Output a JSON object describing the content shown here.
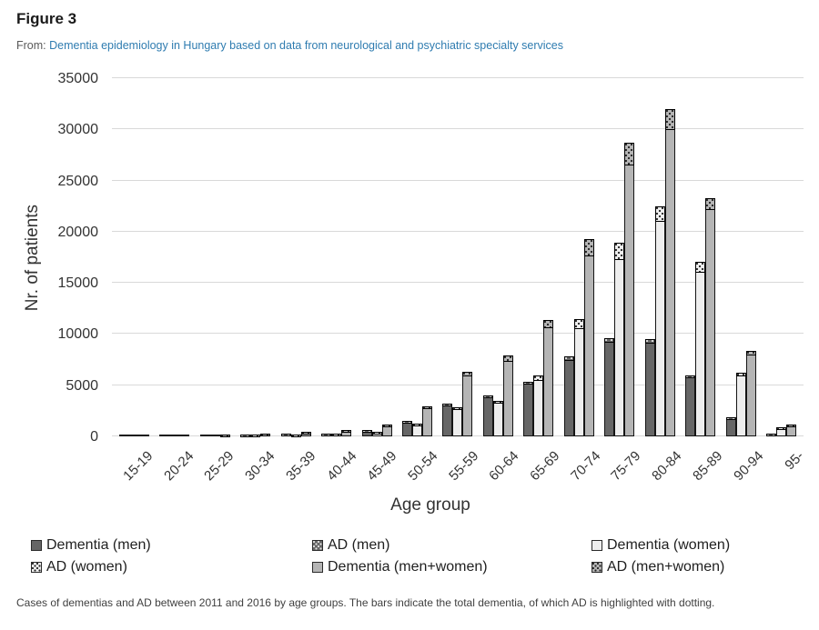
{
  "figure": {
    "title": "Figure 3",
    "from_label": "From:",
    "source_link": "Dementia epidemiology in Hungary based on data from neurological and psychiatric specialty services"
  },
  "caption": "Cases of dementias and AD between 2011 and 2016 by age groups. The bars indicate the total dementia, of which AD is highlighted with dotting.",
  "colors": {
    "link": "#2f7cb0",
    "men_fill": "#666666",
    "women_fill": "#eeeeee",
    "total_fill": "#b5b5b5",
    "bar_border": "#141414",
    "gridline": "#d9d9d9"
  },
  "legend": {
    "items": [
      {
        "label": "Dementia (men)",
        "series": "men",
        "dotted": false
      },
      {
        "label": "AD (men)",
        "series": "men",
        "dotted": true
      },
      {
        "label": "Dementia (women)",
        "series": "women",
        "dotted": false
      },
      {
        "label": "AD (women)",
        "series": "women",
        "dotted": true
      },
      {
        "label": "Dementia (men+women)",
        "series": "total",
        "dotted": false
      },
      {
        "label": "AD (men+women)",
        "series": "total",
        "dotted": true
      }
    ]
  },
  "chart_data": {
    "type": "bar",
    "title": "",
    "xlabel": "Age group",
    "ylabel": "Nr. of patients",
    "ylim": [
      0,
      35000
    ],
    "yticks": [
      0,
      5000,
      10000,
      15000,
      20000,
      25000,
      30000,
      35000
    ],
    "grid": true,
    "legend_position": "bottom",
    "categories": [
      "15-19",
      "20-24",
      "25-29",
      "30-34",
      "35-39",
      "40-44",
      "45-49",
      "50-54",
      "55-59",
      "60-64",
      "65-69",
      "70-74",
      "75-79",
      "80-84",
      "85-89",
      "90-94",
      "95-"
    ],
    "series": [
      {
        "name": "Dementia (men)",
        "values": [
          60,
          90,
          110,
          160,
          250,
          280,
          620,
          1500,
          3200,
          4000,
          5350,
          7800,
          9600,
          9500,
          5950,
          1900,
          270
        ]
      },
      {
        "name": "AD (men)",
        "values": [
          0,
          0,
          0,
          10,
          20,
          30,
          60,
          130,
          220,
          260,
          330,
          390,
          430,
          400,
          270,
          90,
          10
        ]
      },
      {
        "name": "Dementia (women)",
        "values": [
          50,
          70,
          90,
          140,
          220,
          250,
          450,
          1250,
          2850,
          3500,
          5950,
          11450,
          18900,
          22500,
          17100,
          6200,
          890
        ]
      },
      {
        "name": "AD (women)",
        "values": [
          0,
          0,
          0,
          10,
          20,
          30,
          70,
          150,
          260,
          330,
          530,
          950,
          1700,
          1550,
          1100,
          380,
          40
        ]
      },
      {
        "name": "Dementia (men+women)",
        "values": [
          110,
          160,
          200,
          280,
          450,
          600,
          1150,
          2950,
          6300,
          7900,
          11400,
          19300,
          28700,
          32000,
          23300,
          8350,
          1150
        ]
      },
      {
        "name": "AD (men+women)",
        "values": [
          0,
          0,
          10,
          20,
          40,
          60,
          130,
          280,
          480,
          590,
          850,
          1700,
          2250,
          2100,
          1200,
          470,
          50
        ]
      }
    ]
  }
}
